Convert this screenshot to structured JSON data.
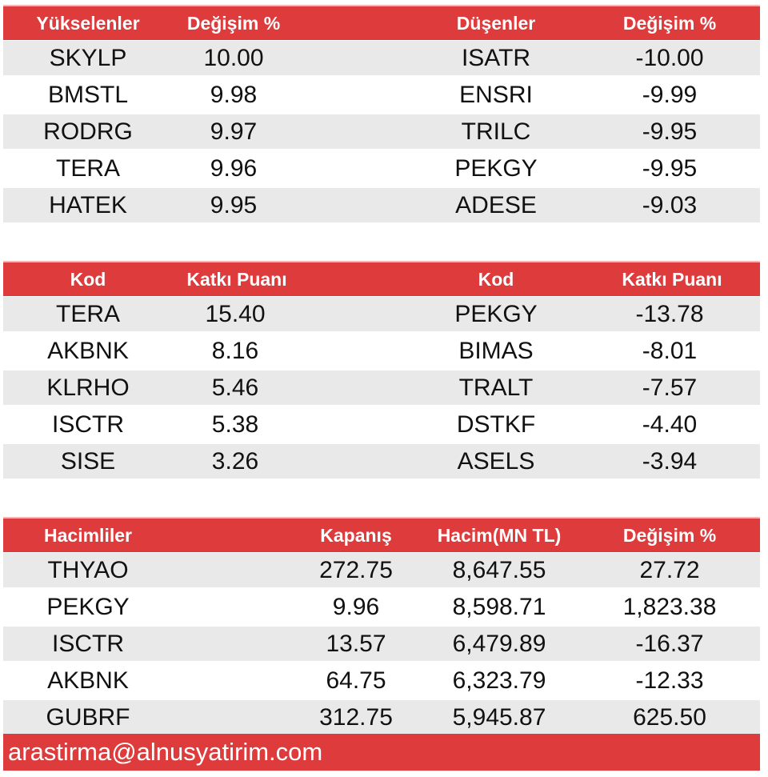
{
  "section1": {
    "headers": [
      "Yükselenler",
      "Değişim %",
      "Düşenler",
      "Değişim %"
    ],
    "rows": [
      [
        "SKYLP",
        "10.00",
        "ISATR",
        "-10.00"
      ],
      [
        "BMSTL",
        "9.98",
        "ENSRI",
        "-9.99"
      ],
      [
        "RODRG",
        "9.97",
        "TRILC",
        "-9.95"
      ],
      [
        "TERA",
        "9.96",
        "PEKGY",
        "-9.95"
      ],
      [
        "HATEK",
        "9.95",
        "ADESE",
        "-9.03"
      ]
    ]
  },
  "section2": {
    "headers": [
      "Kod",
      "Katkı Puanı",
      "Kod",
      "Katkı Puanı"
    ],
    "rows": [
      [
        "TERA",
        "15.40",
        "PEKGY",
        "-13.78"
      ],
      [
        "AKBNK",
        "8.16",
        "BIMAS",
        "-8.01"
      ],
      [
        "KLRHO",
        "5.46",
        "TRALT",
        "-7.57"
      ],
      [
        "ISCTR",
        "5.38",
        "DSTKF",
        "-4.40"
      ],
      [
        "SISE",
        "3.26",
        "ASELS",
        "-3.94"
      ]
    ]
  },
  "section3": {
    "headers": [
      "Hacimliler",
      "Kapanış",
      "Hacim(MN TL)",
      "Değişim %"
    ],
    "rows": [
      [
        "THYAO",
        "272.75",
        "8,647.55",
        "27.72"
      ],
      [
        "PEKGY",
        "9.96",
        "8,598.71",
        "1,823.38"
      ],
      [
        "ISCTR",
        "13.57",
        "6,479.89",
        "-16.37"
      ],
      [
        "AKBNK",
        "64.75",
        "6,323.79",
        "-12.33"
      ],
      [
        "GUBRF",
        "312.75",
        "5,945.87",
        "625.50"
      ]
    ]
  },
  "footer": {
    "email": "arastirma@alnusyatirim.com"
  },
  "colors": {
    "header_bg": "#de3b3c",
    "alt_row_bg": "#e9e9e9",
    "header_text": "#ffffff"
  }
}
